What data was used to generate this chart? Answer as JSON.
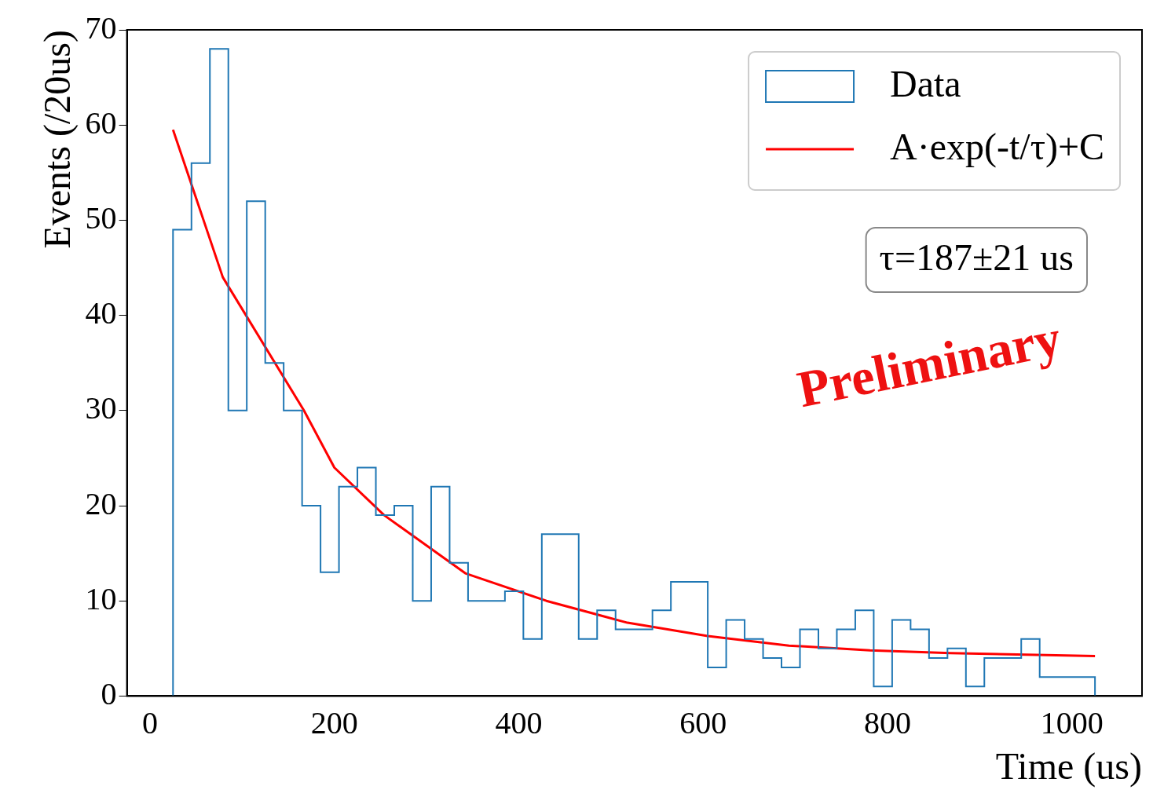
{
  "chart_data": {
    "type": "histogram",
    "xlabel": "Time (us)",
    "ylabel": "Events (/20us)",
    "bins": [
      25,
      45,
      65,
      85,
      105,
      125,
      145,
      165,
      185,
      205,
      225,
      245,
      265,
      285,
      305,
      325,
      345,
      365,
      385,
      405,
      425,
      445,
      465,
      485,
      505,
      525,
      545,
      565,
      585,
      605,
      625,
      645,
      665,
      685,
      705,
      725,
      745,
      765,
      785,
      805,
      825,
      845,
      865,
      885,
      905,
      925,
      945,
      965,
      985,
      1005,
      1025
    ],
    "series": [
      {
        "name": "Data",
        "type": "histogram",
        "color": "#1f77b4",
        "values": [
          49,
          56,
          68,
          30,
          52,
          35,
          30,
          20,
          13,
          22,
          24,
          19,
          20,
          10,
          22,
          14,
          10,
          10,
          11,
          6,
          17,
          17,
          6,
          9,
          7,
          7,
          9,
          12,
          12,
          3,
          8,
          6,
          4,
          3,
          7,
          5,
          7,
          9,
          1,
          8,
          7,
          4,
          5,
          1,
          4,
          4,
          6,
          2,
          2,
          2
        ]
      },
      {
        "name": "A·exp(-t/τ)+C",
        "type": "line",
        "color": "#ff0000",
        "x": [
          25,
          79,
          167,
          200,
          254,
          342,
          430,
          518,
          605,
          693,
          781,
          868,
          1025
        ],
        "values": [
          59.5,
          44,
          30,
          24,
          19,
          12.9,
          10,
          7.7,
          6.3,
          5.3,
          4.8,
          4.5,
          4.2
        ]
      }
    ],
    "xlim": [
      -25,
      1076
    ],
    "xticks": [
      0,
      200,
      400,
      600,
      800,
      1000
    ],
    "ylim": [
      0,
      70
    ],
    "yticks": [
      0,
      10,
      20,
      30,
      40,
      50,
      60,
      70
    ],
    "grid": false,
    "legend": "top right",
    "annotations": [
      "τ=187±21 us",
      "Preliminary"
    ]
  }
}
